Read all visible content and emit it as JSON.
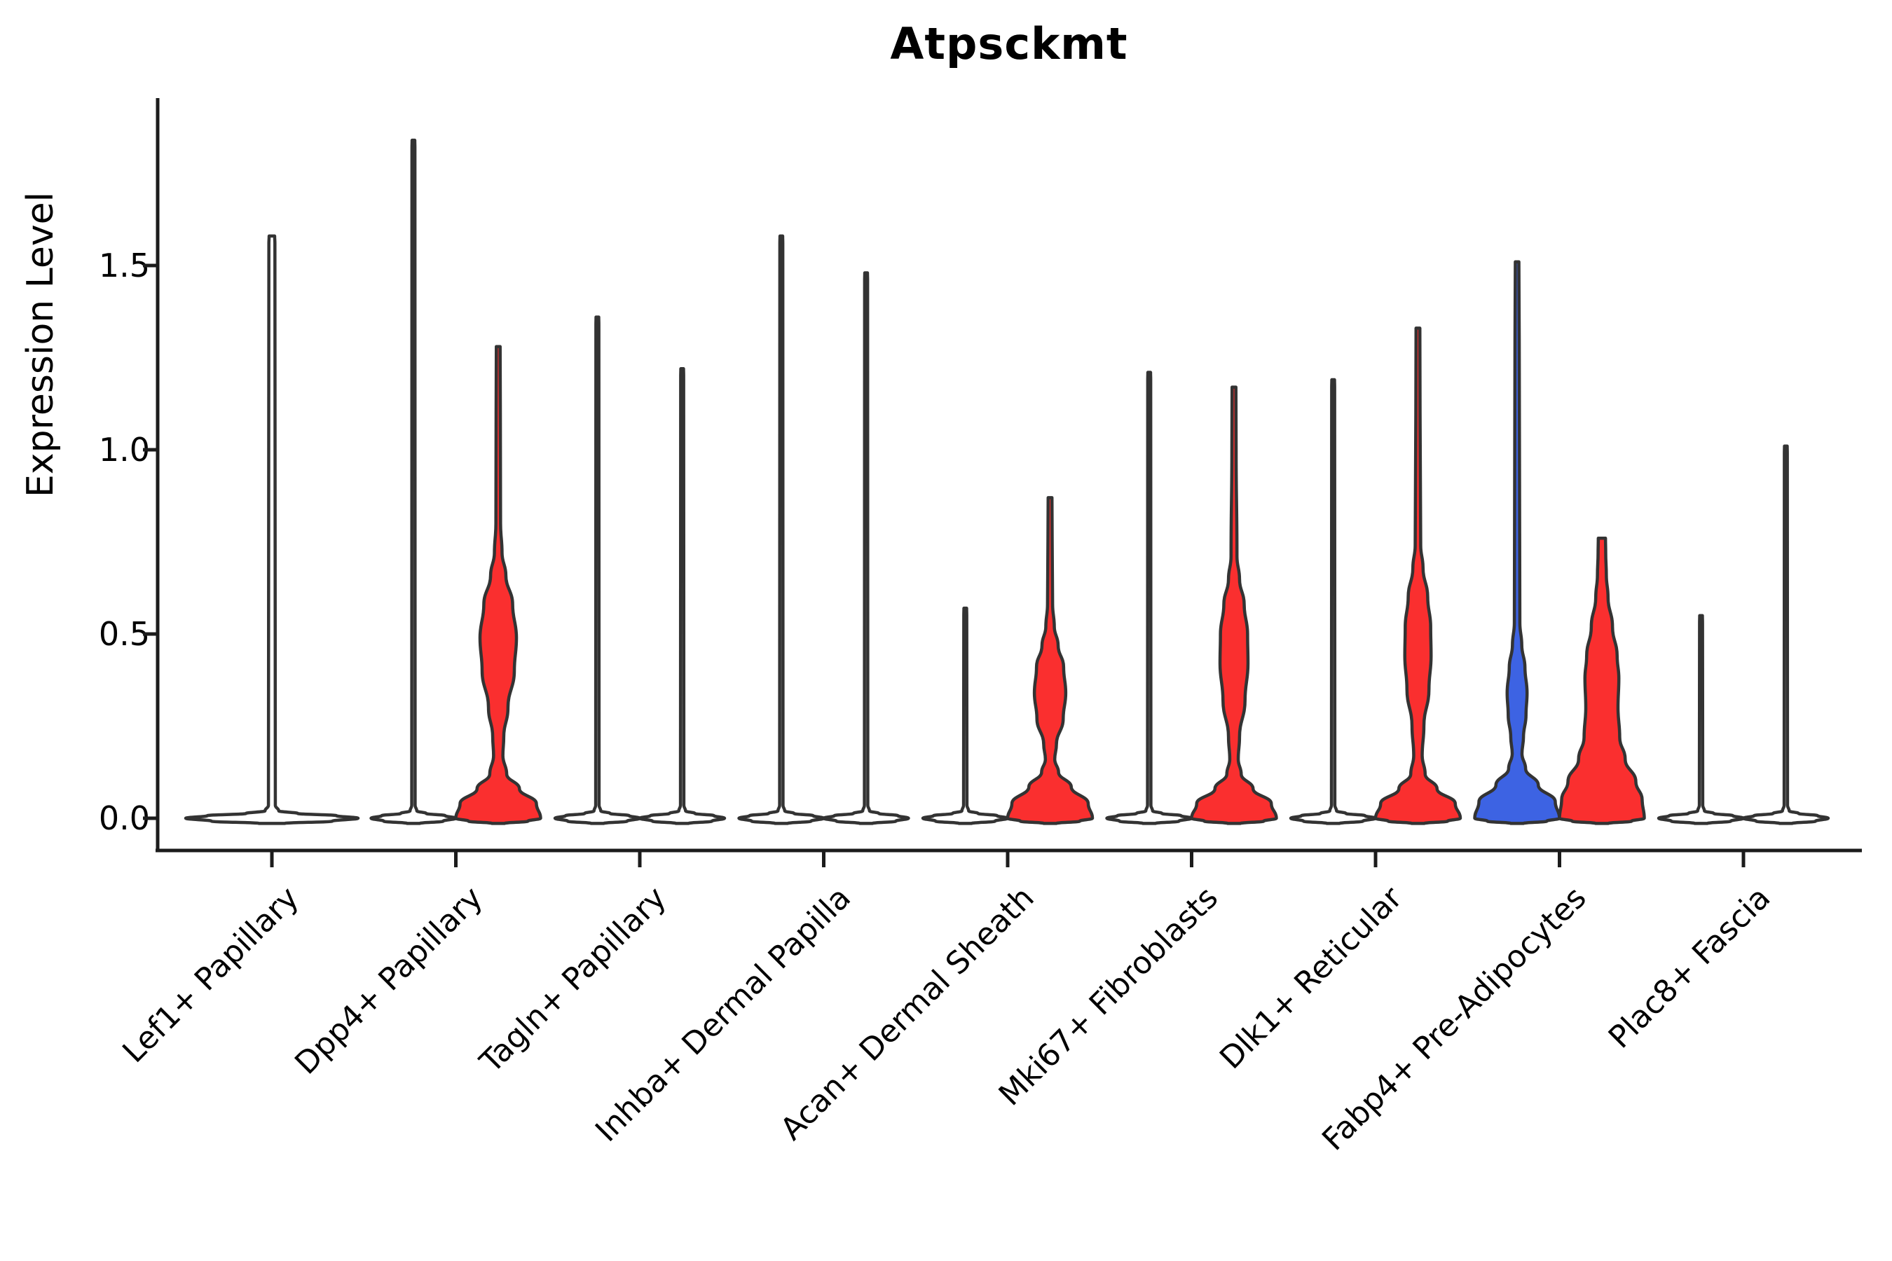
{
  "chart_data": {
    "type": "violin",
    "title": "Atpsckmt",
    "xlabel": "",
    "ylabel": "Expression Level",
    "ylim": [
      -0.09,
      1.95
    ],
    "yticks": [
      1.5,
      1.0,
      0.5,
      0.0
    ],
    "ytick_labels": [
      "1.5",
      "1.0",
      "0.5",
      "0.0"
    ],
    "grid": false,
    "legend": "none",
    "colors": {
      "red": "#fa2f2f",
      "blue": "#3d63e3",
      "outline": "#333333",
      "axis": "#1c1c1c"
    },
    "categories": [
      "Lef1+ Papillary",
      "Dpp4+ Papillary",
      "Tagln+ Papillary",
      "Inhba+ Dermal Papilla",
      "Acan+ Dermal Sheath",
      "Mki67+ Fibroblasts",
      "Dlk1+ Reticular",
      "Fabp4+ Pre-Adipocytes",
      "Plac8+ Fascia"
    ],
    "groups": [
      {
        "category": "Lef1+ Papillary",
        "violins": [
          {
            "pos": "center",
            "fill": "none",
            "max": 1.58,
            "wide": true
          }
        ]
      },
      {
        "category": "Dpp4+ Papillary",
        "violins": [
          {
            "pos": "left",
            "fill": "none",
            "max": 1.84
          },
          {
            "pos": "right",
            "fill": "red",
            "max": 1.28,
            "profile": [
              [
                0,
                1.0
              ],
              [
                0.04,
                0.9
              ],
              [
                0.08,
                0.5
              ],
              [
                0.12,
                0.2
              ],
              [
                0.17,
                0.11
              ],
              [
                0.22,
                0.13
              ],
              [
                0.3,
                0.23
              ],
              [
                0.4,
                0.38
              ],
              [
                0.49,
                0.43
              ],
              [
                0.58,
                0.34
              ],
              [
                0.66,
                0.18
              ],
              [
                0.72,
                0.09
              ],
              [
                0.8,
                0.055
              ],
              [
                1.1,
                0.05
              ],
              [
                1.28,
                0.045
              ]
            ]
          }
        ]
      },
      {
        "category": "Tagln+ Papillary",
        "violins": [
          {
            "pos": "left",
            "fill": "none",
            "max": 1.36
          },
          {
            "pos": "right",
            "fill": "none",
            "max": 1.22
          }
        ]
      },
      {
        "category": "Inhba+ Dermal Papilla",
        "violins": [
          {
            "pos": "left",
            "fill": "none",
            "max": 1.58
          },
          {
            "pos": "right",
            "fill": "none",
            "max": 1.48
          }
        ]
      },
      {
        "category": "Acan+ Dermal Sheath",
        "violins": [
          {
            "pos": "left",
            "fill": "none",
            "max": 0.57
          },
          {
            "pos": "right",
            "fill": "red",
            "max": 0.87,
            "profile": [
              [
                0,
                1.0
              ],
              [
                0.04,
                0.9
              ],
              [
                0.085,
                0.5
              ],
              [
                0.125,
                0.2
              ],
              [
                0.16,
                0.11
              ],
              [
                0.2,
                0.15
              ],
              [
                0.27,
                0.31
              ],
              [
                0.34,
                0.37
              ],
              [
                0.41,
                0.32
              ],
              [
                0.47,
                0.19
              ],
              [
                0.52,
                0.1
              ],
              [
                0.58,
                0.06
              ],
              [
                0.75,
                0.05
              ],
              [
                0.87,
                0.045
              ]
            ]
          }
        ]
      },
      {
        "category": "Mki67+ Fibroblasts",
        "violins": [
          {
            "pos": "left",
            "fill": "none",
            "max": 1.21
          },
          {
            "pos": "right",
            "fill": "red",
            "max": 1.17,
            "profile": [
              [
                0,
                1.0
              ],
              [
                0.04,
                0.88
              ],
              [
                0.08,
                0.45
              ],
              [
                0.12,
                0.17
              ],
              [
                0.16,
                0.1
              ],
              [
                0.22,
                0.13
              ],
              [
                0.32,
                0.26
              ],
              [
                0.42,
                0.33
              ],
              [
                0.5,
                0.32
              ],
              [
                0.58,
                0.24
              ],
              [
                0.65,
                0.13
              ],
              [
                0.71,
                0.07
              ],
              [
                1.0,
                0.05
              ],
              [
                1.17,
                0.045
              ]
            ]
          }
        ]
      },
      {
        "category": "Dlk1+ Reticular",
        "violins": [
          {
            "pos": "left",
            "fill": "none",
            "max": 1.19
          },
          {
            "pos": "right",
            "fill": "red",
            "max": 1.33,
            "profile": [
              [
                0,
                1.0
              ],
              [
                0.04,
                0.88
              ],
              [
                0.08,
                0.45
              ],
              [
                0.12,
                0.17
              ],
              [
                0.17,
                0.1
              ],
              [
                0.25,
                0.14
              ],
              [
                0.35,
                0.26
              ],
              [
                0.44,
                0.31
              ],
              [
                0.52,
                0.3
              ],
              [
                0.6,
                0.23
              ],
              [
                0.68,
                0.12
              ],
              [
                0.74,
                0.065
              ],
              [
                1.1,
                0.05
              ],
              [
                1.33,
                0.045
              ]
            ]
          }
        ]
      },
      {
        "category": "Fabp4+ Pre-Adipocytes",
        "violins": [
          {
            "pos": "left",
            "fill": "blue",
            "max": 1.51,
            "profile": [
              [
                0,
                1.0
              ],
              [
                0.045,
                0.9
              ],
              [
                0.09,
                0.5
              ],
              [
                0.135,
                0.2
              ],
              [
                0.175,
                0.115
              ],
              [
                0.22,
                0.15
              ],
              [
                0.28,
                0.21
              ],
              [
                0.34,
                0.235
              ],
              [
                0.41,
                0.185
              ],
              [
                0.47,
                0.11
              ],
              [
                0.53,
                0.065
              ],
              [
                1.3,
                0.05
              ],
              [
                1.51,
                0.042
              ]
            ]
          },
          {
            "pos": "right",
            "fill": "red",
            "max": 0.76,
            "profile": [
              [
                0,
                1.0
              ],
              [
                0.05,
                0.95
              ],
              [
                0.1,
                0.8
              ],
              [
                0.16,
                0.55
              ],
              [
                0.22,
                0.42
              ],
              [
                0.3,
                0.38
              ],
              [
                0.38,
                0.4
              ],
              [
                0.44,
                0.36
              ],
              [
                0.52,
                0.25
              ],
              [
                0.6,
                0.145
              ],
              [
                0.66,
                0.105
              ],
              [
                0.72,
                0.09
              ],
              [
                0.76,
                0.085
              ]
            ]
          }
        ]
      },
      {
        "category": "Plac8+ Fascia",
        "violins": [
          {
            "pos": "left",
            "fill": "none",
            "max": 0.55
          },
          {
            "pos": "right",
            "fill": "none",
            "max": 1.01
          }
        ]
      }
    ]
  }
}
